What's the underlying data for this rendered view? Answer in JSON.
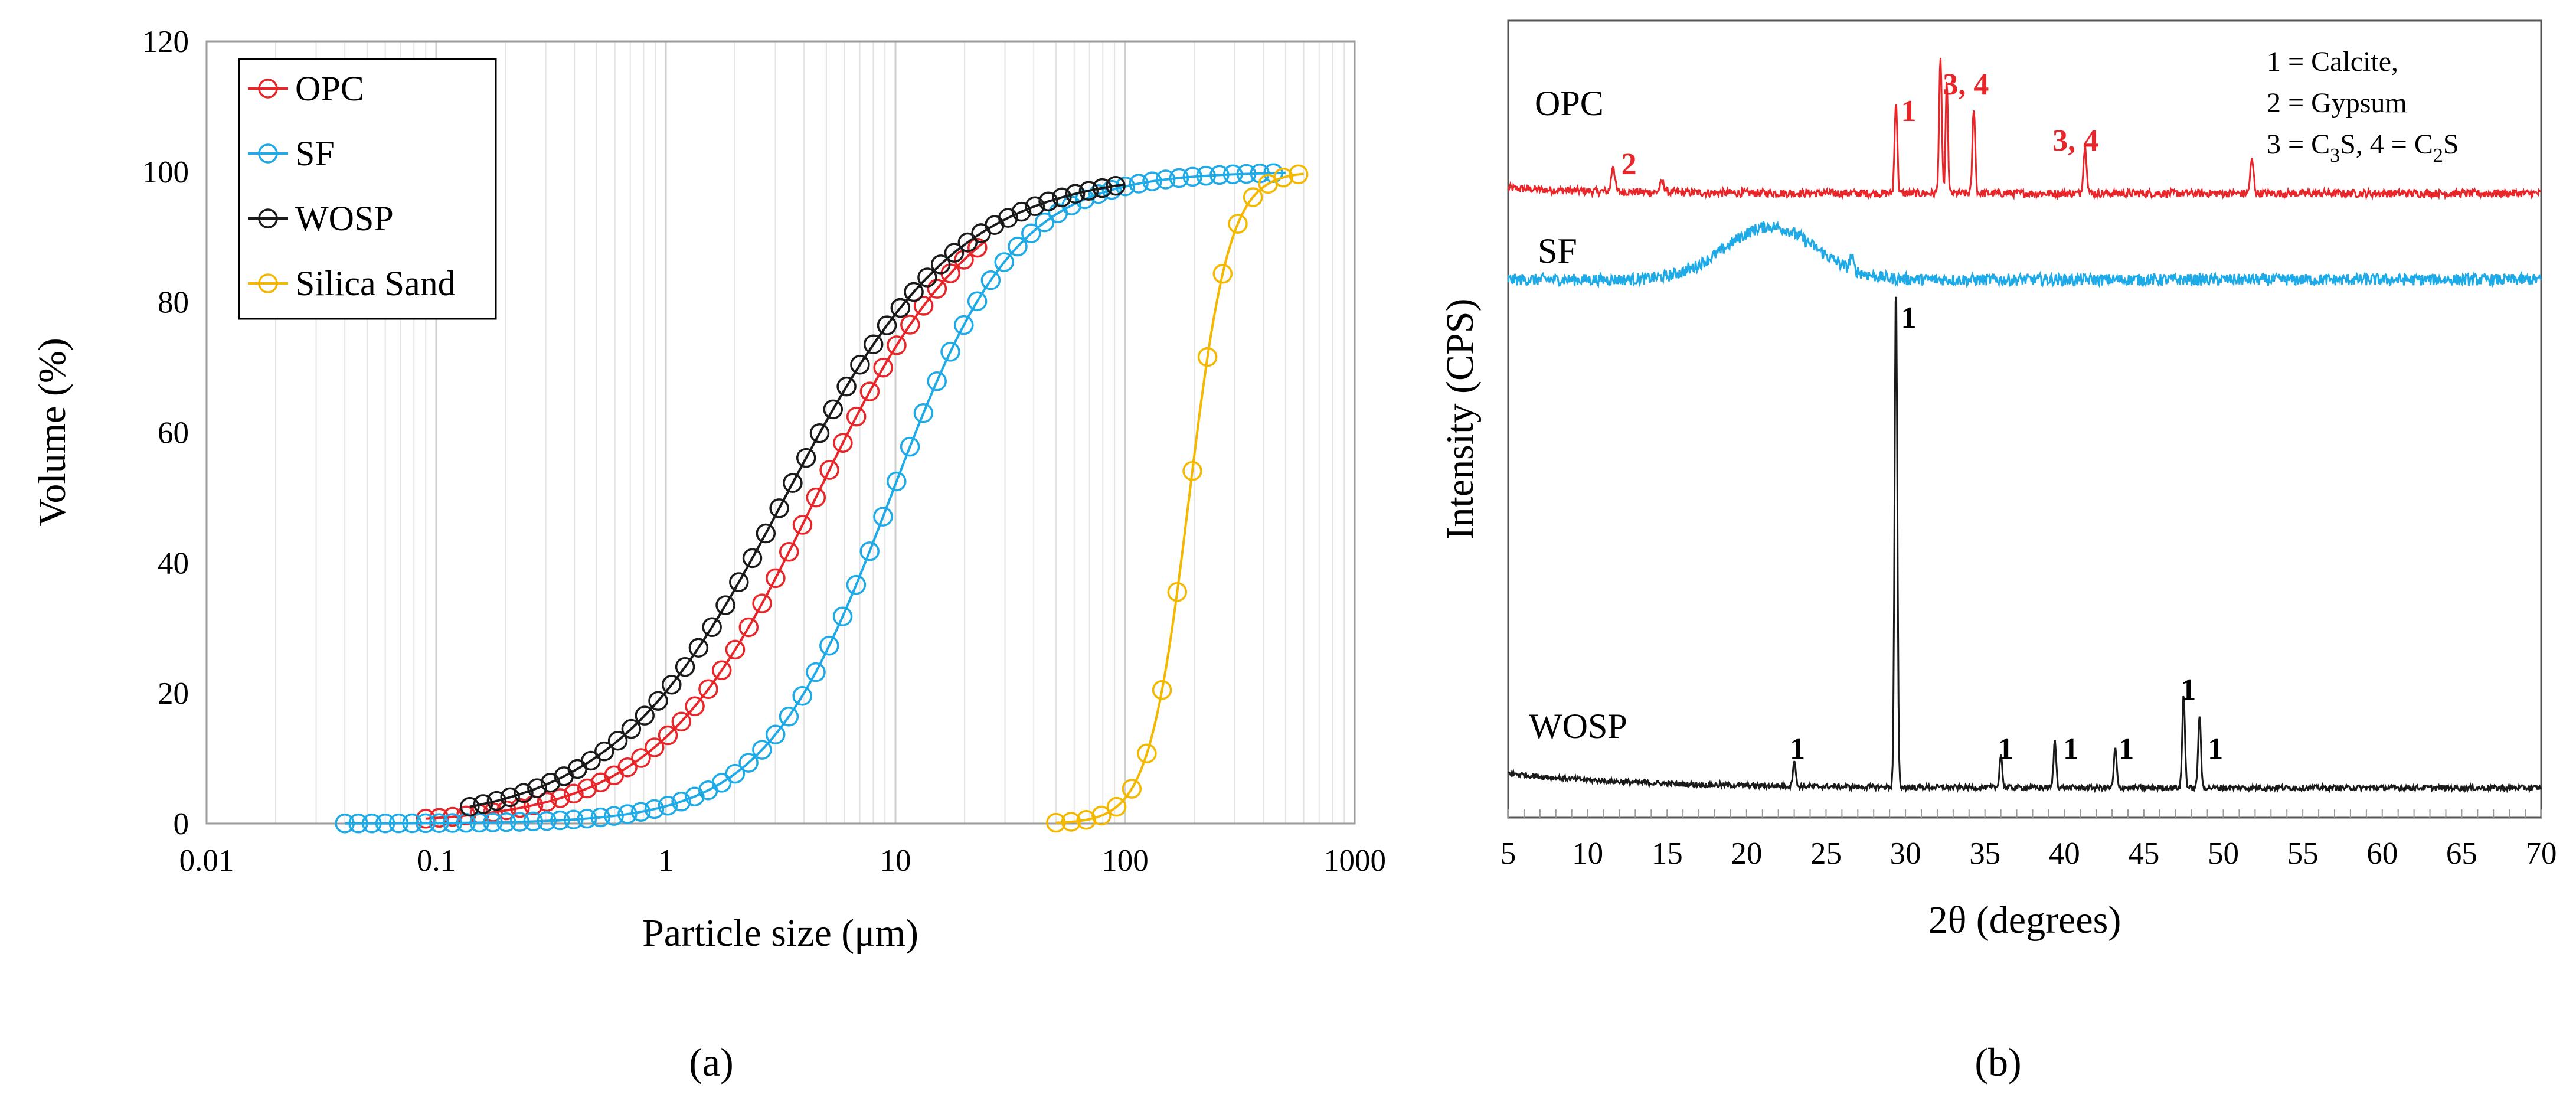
{
  "chart_data": [
    {
      "type": "line",
      "panel_label": "(a)",
      "xlabel": "Particle size (μm)",
      "ylabel": "Volume (%)",
      "xscale": "log",
      "xlim": [
        0.01,
        1000
      ],
      "ylim": [
        0,
        120
      ],
      "xticks": [
        0.01,
        0.1,
        1,
        10,
        100,
        1000
      ],
      "xtick_labels": [
        "0.01",
        "0.1",
        "1",
        "10",
        "100",
        "1000"
      ],
      "yticks": [
        0,
        20,
        40,
        60,
        80,
        100,
        120
      ],
      "ytick_labels": [
        "0",
        "20",
        "40",
        "60",
        "80",
        "100",
        "120"
      ],
      "grid": "vertical minor log gridlines",
      "legend_position": "top-left",
      "markers": "open circles",
      "series": [
        {
          "name": "OPC",
          "color": "#e8262a",
          "d50": 4.5,
          "slope": 1.25,
          "xmin": 0.09,
          "xmax": 25
        },
        {
          "name": "SF",
          "color": "#1eaae6",
          "d50": 9.5,
          "slope": 1.6,
          "xmin": 0.04,
          "xmax": 500
        },
        {
          "name": "WOSP",
          "color": "#1a1a1a",
          "d50": 3.3,
          "slope": 1.15,
          "xmin": 0.14,
          "xmax": 100
        },
        {
          "name": "Silica Sand",
          "color": "#f5b800",
          "d50": 190,
          "slope": 5.0,
          "xmin": 50,
          "xmax": 600
        }
      ]
    },
    {
      "type": "line",
      "panel_label": "(b)",
      "xlabel": "2θ (degrees)",
      "ylabel": "Intensity (CPS)",
      "xlim": [
        5,
        70
      ],
      "xticks": [
        5,
        10,
        15,
        20,
        25,
        30,
        35,
        40,
        45,
        50,
        55,
        60,
        65,
        70
      ],
      "xtick_labels": [
        "5",
        "10",
        "15",
        "20",
        "25",
        "30",
        "35",
        "40",
        "45",
        "50",
        "55",
        "60",
        "65",
        "70"
      ],
      "legend_box": [
        "1 = Calcite,",
        "2 = Gypsum",
        "3 = C3S, 4 = C2S"
      ],
      "series": [
        {
          "name": "OPC",
          "color": "#e8262a",
          "baseline": 94,
          "noise": 0.6,
          "peaks": [
            [
              11.6,
              4,
              0.15
            ],
            [
              14.7,
              1.5,
              0.2
            ],
            [
              29.4,
              14,
              0.12
            ],
            [
              32.2,
              20,
              0.12
            ],
            [
              32.6,
              17,
              0.1
            ],
            [
              34.3,
              13,
              0.12
            ],
            [
              41.3,
              7,
              0.15
            ],
            [
              51.8,
              5,
              0.15
            ]
          ],
          "labels": [
            {
              "text": "1",
              "x": 30.2
            },
            {
              "text": "3, 4",
              "x": 33.8
            },
            {
              "text": "2",
              "x": 12.6
            },
            {
              "text": "3, 4",
              "x": 40.7
            }
          ]
        },
        {
          "name": "SF",
          "color": "#1eaae6",
          "baseline": 81,
          "noise": 0.9,
          "peaks": [
            [
              21.5,
              8,
              4.0
            ],
            [
              26.6,
              2,
              0.15
            ]
          ],
          "labels": []
        },
        {
          "name": "WOSP",
          "color": "#1a1a1a",
          "baseline": 4.5,
          "noise": 0.4,
          "peaks": [
            [
              23.0,
              4,
              0.12
            ],
            [
              29.4,
              76,
              0.12
            ],
            [
              36.0,
              5,
              0.12
            ],
            [
              39.4,
              7,
              0.12
            ],
            [
              43.2,
              6,
              0.12
            ],
            [
              47.5,
              14,
              0.12
            ],
            [
              48.5,
              11,
              0.12
            ]
          ],
          "labels": [
            {
              "text": "1",
              "x": 23.2
            },
            {
              "text": "1",
              "x": 30.2
            },
            {
              "text": "1",
              "x": 36.3
            },
            {
              "text": "1",
              "x": 40.4
            },
            {
              "text": "1",
              "x": 43.9
            },
            {
              "text": "1",
              "x": 47.8
            },
            {
              "text": "1",
              "x": 49.5
            }
          ]
        }
      ]
    }
  ]
}
